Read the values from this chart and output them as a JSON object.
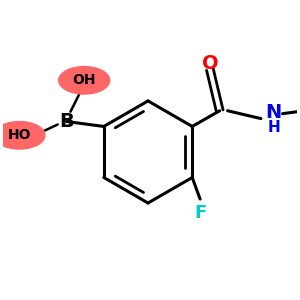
{
  "bg_color": "#ffffff",
  "bond_color": "#000000",
  "boron_color": "#000000",
  "boron_text": "B",
  "oh1_text": "OH",
  "oh2_text": "HO",
  "oh_bg_color": "#ff6666",
  "oxygen_color": "#ff0000",
  "oxygen_text": "O",
  "nitrogen_color": "#0000ee",
  "nitrogen_text": "N",
  "h_text": "H",
  "fluorine_color": "#00cccc",
  "fluorine_text": "F",
  "cyclopropyl_color": "#000000",
  "figsize": [
    3.0,
    3.0
  ],
  "dpi": 100
}
